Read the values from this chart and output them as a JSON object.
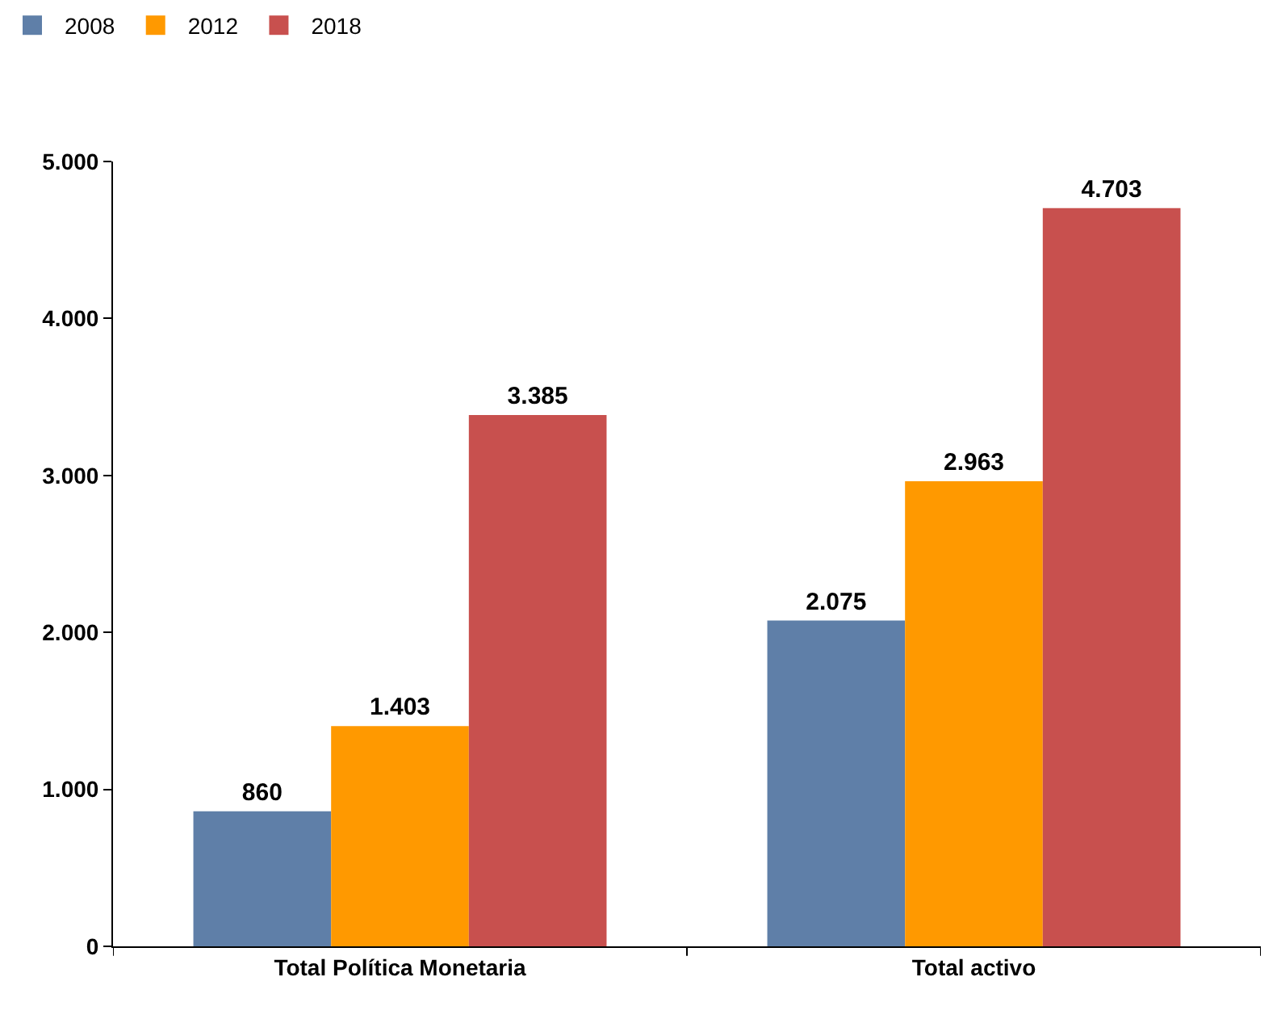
{
  "chart_data": {
    "type": "bar",
    "categories": [
      "Total Política Monetaria",
      "Total activo"
    ],
    "series": [
      {
        "name": "2008",
        "color": "#5f7fa8",
        "values": [
          860,
          2075
        ],
        "value_labels": [
          "860",
          "2.075"
        ]
      },
      {
        "name": "2012",
        "color": "#ff9900",
        "values": [
          1403,
          2963
        ],
        "value_labels": [
          "1.403",
          "2.963"
        ]
      },
      {
        "name": "2018",
        "color": "#c8504e",
        "values": [
          3385,
          4703
        ],
        "value_labels": [
          "3.385",
          "4.703"
        ]
      }
    ],
    "ylim": [
      0,
      5000
    ],
    "yticks": [
      0,
      {
        "value": 1000,
        "label": "1.000"
      },
      {
        "value": 2000,
        "label": "2.000"
      },
      {
        "value": 3000,
        "label": "3.000"
      },
      {
        "value": 4000,
        "label": "4.000"
      },
      {
        "value": 5000,
        "label": "5.000"
      }
    ],
    "legend": "top left"
  }
}
